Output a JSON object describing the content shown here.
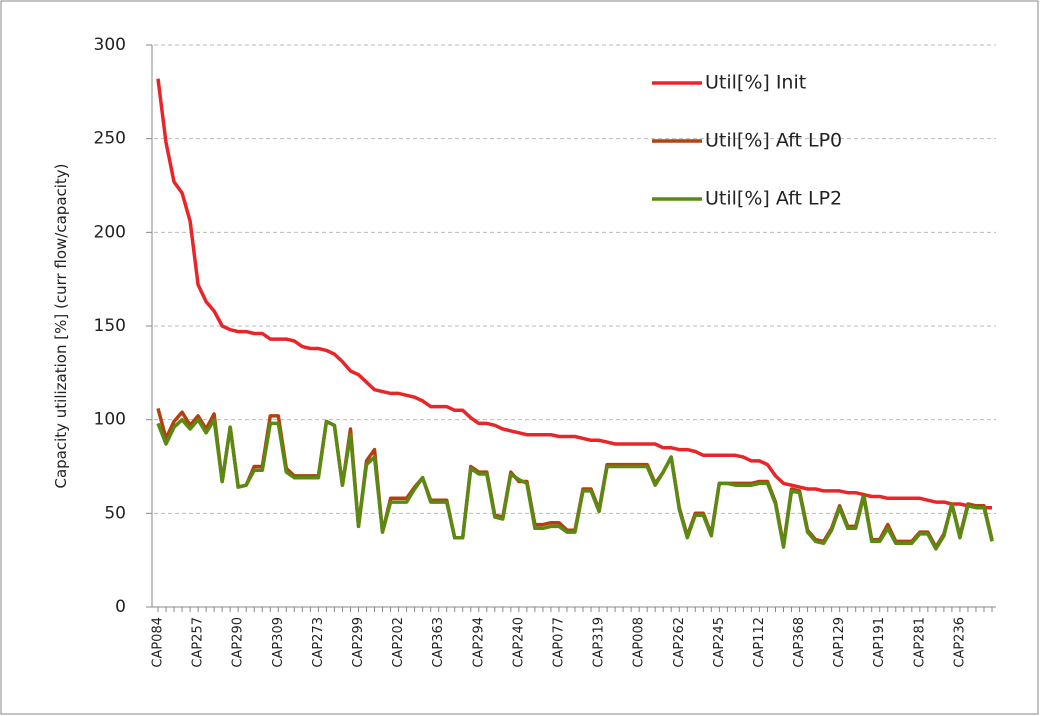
{
  "chart_data": {
    "type": "line",
    "y_label": "Capacity utilization [%] (curr flow/capacity)",
    "categories": [
      "CAP084",
      null,
      null,
      null,
      null,
      "CAP257",
      null,
      null,
      null,
      null,
      "CAP290",
      null,
      null,
      null,
      null,
      "CAP309",
      null,
      null,
      null,
      null,
      "CAP273",
      null,
      null,
      null,
      null,
      "CAP299",
      null,
      null,
      null,
      null,
      "CAP202",
      null,
      null,
      null,
      null,
      "CAP363",
      null,
      null,
      null,
      null,
      "CAP294",
      null,
      null,
      null,
      null,
      "CAP240",
      null,
      null,
      null,
      null,
      "CAP077",
      null,
      null,
      null,
      null,
      "CAP319",
      null,
      null,
      null,
      null,
      "CAP008",
      null,
      null,
      null,
      null,
      "CAP262",
      null,
      null,
      null,
      null,
      "CAP245",
      null,
      null,
      null,
      null,
      "CAP112",
      null,
      null,
      null,
      null,
      "CAP368",
      null,
      null,
      null,
      null,
      "CAP129",
      null,
      null,
      null,
      null,
      "CAP191",
      null,
      null,
      null,
      null,
      "CAP281",
      null,
      null,
      null,
      null,
      "CAP236",
      null,
      null,
      null,
      null
    ],
    "series": [
      {
        "name": "Util[%] Init",
        "color": "#e8262a",
        "values": [
          282,
          248,
          227,
          221,
          206,
          172,
          163,
          158,
          150,
          148,
          147,
          147,
          146,
          146,
          143,
          143,
          143,
          142,
          139,
          138,
          138,
          137,
          135,
          131,
          126,
          124,
          120,
          116,
          115,
          114,
          114,
          113,
          112,
          110,
          107,
          107,
          107,
          105,
          105,
          101,
          98,
          98,
          97,
          95,
          94,
          93,
          92,
          92,
          92,
          92,
          91,
          91,
          91,
          90,
          89,
          89,
          88,
          87,
          87,
          87,
          87,
          87,
          87,
          85,
          85,
          84,
          84,
          83,
          81,
          81,
          81,
          81,
          81,
          80,
          78,
          78,
          76,
          70,
          66,
          65,
          64,
          63,
          63,
          62,
          62,
          62,
          61,
          61,
          60,
          59,
          59,
          58,
          58,
          58,
          58,
          58,
          57,
          56,
          56,
          55,
          55,
          54,
          54,
          53,
          53
        ]
      },
      {
        "name": "Util[%] Aft LP0",
        "color": "#b5400f",
        "values": [
          106,
          90,
          99,
          104,
          97,
          102,
          95,
          103,
          67,
          96,
          64,
          65,
          75,
          75,
          102,
          102,
          74,
          70,
          70,
          70,
          70,
          99,
          97,
          65,
          95,
          43,
          78,
          84,
          40,
          58,
          58,
          58,
          64,
          69,
          57,
          57,
          57,
          37,
          37,
          75,
          72,
          72,
          49,
          48,
          72,
          67,
          67,
          44,
          44,
          45,
          45,
          41,
          41,
          63,
          63,
          52,
          76,
          76,
          76,
          76,
          76,
          76,
          66,
          72,
          80,
          53,
          38,
          50,
          50,
          39,
          66,
          66,
          66,
          66,
          66,
          67,
          67,
          56,
          33,
          63,
          62,
          41,
          36,
          35,
          42,
          54,
          43,
          43,
          60,
          36,
          36,
          44,
          35,
          35,
          35,
          40,
          40,
          32,
          39,
          55,
          38,
          55,
          54,
          54,
          36
        ]
      },
      {
        "name": "Util[%] Aft LP2",
        "color": "#5a8a12",
        "values": [
          98,
          87,
          96,
          100,
          95,
          100,
          93,
          100,
          67,
          96,
          64,
          65,
          73,
          73,
          98,
          98,
          72,
          69,
          69,
          69,
          69,
          99,
          97,
          65,
          92,
          43,
          76,
          80,
          40,
          56,
          56,
          56,
          63,
          69,
          56,
          56,
          56,
          37,
          37,
          74,
          71,
          71,
          48,
          47,
          71,
          68,
          66,
          42,
          42,
          43,
          43,
          40,
          40,
          62,
          62,
          51,
          75,
          75,
          75,
          75,
          75,
          75,
          65,
          72,
          80,
          52,
          37,
          49,
          49,
          38,
          66,
          66,
          65,
          65,
          65,
          66,
          66,
          55,
          32,
          62,
          61,
          40,
          35,
          34,
          41,
          53,
          42,
          42,
          59,
          35,
          35,
          42,
          34,
          34,
          34,
          39,
          39,
          31,
          38,
          55,
          37,
          54,
          53,
          53,
          35
        ]
      }
    ],
    "ylim": [
      0,
      300
    ],
    "yticks": [
      0,
      50,
      100,
      150,
      200,
      250,
      300
    ],
    "grid": true,
    "legend": "upper right"
  }
}
